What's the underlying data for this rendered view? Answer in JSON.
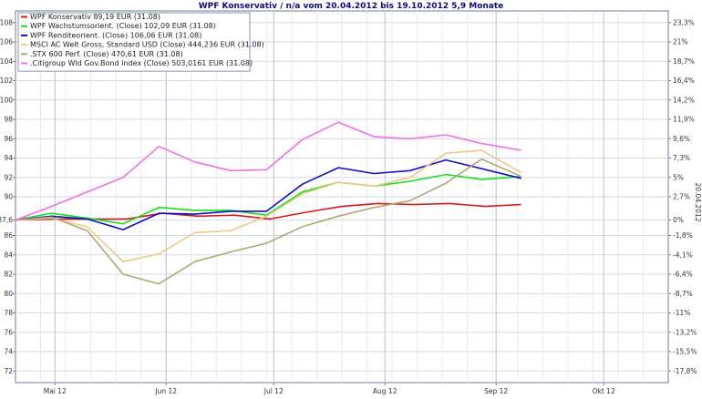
{
  "colors": {
    "background": "#ffffff",
    "plot_border": "#6f7b9a",
    "grid": "#d2d9e6",
    "title": "#0a0a7a"
  },
  "chart_data": {
    "type": "line",
    "title": "WPF Konservativ / n/a vom 20.04.2012 bis 19.10.2012 5,9 Monate",
    "right_axis_label": "20.04.2012",
    "grid": true,
    "legend_position": "top-left",
    "x_ticks": [
      {
        "label": "Mai 12",
        "date": "2012-05-01"
      },
      {
        "label": "Jun 12",
        "date": "2012-06-01"
      },
      {
        "label": "Jul 12",
        "date": "2012-07-01"
      },
      {
        "label": "Aug 12",
        "date": "2012-08-01"
      },
      {
        "label": "Sep 12",
        "date": "2012-09-01"
      },
      {
        "label": "Okt 12",
        "date": "2012-10-01"
      }
    ],
    "x_range": [
      "2012-04-20",
      "2012-10-19"
    ],
    "y_left": {
      "ticks": [
        "108",
        "106",
        "104",
        "102",
        "100",
        "98",
        "96",
        "94",
        "92",
        "90",
        "87,6",
        "86",
        "84",
        "82",
        "80",
        "78",
        "76",
        "74",
        "72"
      ],
      "range": [
        70.8,
        109.2
      ]
    },
    "y_right_ticks": [
      "23,3%",
      "21%",
      "18,7%",
      "16,4%",
      "14,2%",
      "11,9%",
      "9,6%",
      "7,3%",
      "5%",
      "2,7%",
      "0%",
      "-1,8%",
      "-4,1%",
      "-6,4%",
      "-8,7%",
      "-11%",
      "-13,2%",
      "-15,5%",
      "-17,8%"
    ],
    "series": [
      {
        "name": "WPF Konservativ 89,19 EUR (31.08)",
        "color": "#d81818",
        "dates": [
          "2012-04-20",
          "2012-05-01",
          "2012-05-11",
          "2012-05-21",
          "2012-05-31",
          "2012-06-10",
          "2012-06-20",
          "2012-06-30",
          "2012-07-10",
          "2012-07-20",
          "2012-07-30",
          "2012-08-09",
          "2012-08-19",
          "2012-08-29",
          "2012-09-08"
        ],
        "values": [
          87.6,
          87.7,
          87.7,
          87.7,
          88.3,
          88.0,
          88.1,
          87.7,
          88.4,
          89.0,
          89.3,
          89.2,
          89.3,
          89.0,
          89.2
        ]
      },
      {
        "name": "WPF Wachstumsorient. (Close) 102,09 EUR (31.08)",
        "color": "#18e018",
        "dates": [
          "2012-04-20",
          "2012-04-30",
          "2012-05-10",
          "2012-05-20",
          "2012-05-30",
          "2012-06-09",
          "2012-06-19",
          "2012-06-29",
          "2012-07-09",
          "2012-07-19",
          "2012-07-29",
          "2012-08-08",
          "2012-08-18",
          "2012-08-28",
          "2012-09-08"
        ],
        "values": [
          87.6,
          88.3,
          87.8,
          87.2,
          88.9,
          88.6,
          88.6,
          88.1,
          90.5,
          91.5,
          91.1,
          91.6,
          92.3,
          91.8,
          92.1
        ]
      },
      {
        "name": "WPF Renditeorient. (Close) 106,06 EUR (31.08)",
        "color": "#1010c8",
        "dates": [
          "2012-04-20",
          "2012-04-30",
          "2012-05-10",
          "2012-05-20",
          "2012-05-30",
          "2012-06-09",
          "2012-06-19",
          "2012-06-29",
          "2012-07-09",
          "2012-07-19",
          "2012-07-29",
          "2012-08-08",
          "2012-08-18",
          "2012-08-28",
          "2012-09-08"
        ],
        "values": [
          87.6,
          88.0,
          87.7,
          86.6,
          88.3,
          88.2,
          88.5,
          88.5,
          91.3,
          93.0,
          92.4,
          92.7,
          93.8,
          92.9,
          91.9
        ]
      },
      {
        "name": "MSCI AC Welt Gross, Standard USD (Close) 444,236 EUR (31.08)",
        "color": "#f0c888",
        "dates": [
          "2012-04-20",
          "2012-04-30",
          "2012-05-10",
          "2012-05-20",
          "2012-05-30",
          "2012-06-09",
          "2012-06-19",
          "2012-06-29",
          "2012-07-09",
          "2012-07-19",
          "2012-07-29",
          "2012-08-08",
          "2012-08-18",
          "2012-08-28",
          "2012-09-08"
        ],
        "values": [
          87.6,
          87.8,
          86.9,
          83.3,
          84.1,
          86.3,
          86.5,
          88.0,
          90.3,
          91.5,
          91.1,
          92.0,
          94.5,
          94.8,
          92.5
        ]
      },
      {
        "name": ".STX 600 Perf. (Close) 470,61 EUR (31.08)",
        "color": "#b0a870",
        "dates": [
          "2012-04-20",
          "2012-04-30",
          "2012-05-10",
          "2012-05-20",
          "2012-05-30",
          "2012-06-09",
          "2012-06-19",
          "2012-06-29",
          "2012-07-09",
          "2012-07-19",
          "2012-07-29",
          "2012-08-08",
          "2012-08-18",
          "2012-08-28",
          "2012-09-08"
        ],
        "values": [
          87.6,
          87.9,
          86.5,
          82.0,
          81.0,
          83.3,
          84.3,
          85.2,
          86.9,
          88.0,
          88.9,
          89.6,
          91.4,
          93.9,
          92.1
        ]
      },
      {
        "name": ".Citigroup Wld Gov.Bond Index (Close) 503,0161 EUR (31.08)",
        "color": "#f070e8",
        "dates": [
          "2012-04-20",
          "2012-04-30",
          "2012-05-10",
          "2012-05-20",
          "2012-05-30",
          "2012-06-09",
          "2012-06-19",
          "2012-06-29",
          "2012-07-09",
          "2012-07-19",
          "2012-07-29",
          "2012-08-08",
          "2012-08-18",
          "2012-08-28",
          "2012-09-08"
        ],
        "values": [
          87.6,
          89.0,
          90.5,
          92.0,
          95.2,
          93.6,
          92.7,
          92.8,
          95.9,
          97.7,
          96.2,
          96.0,
          96.4,
          95.5,
          94.8
        ]
      }
    ]
  }
}
